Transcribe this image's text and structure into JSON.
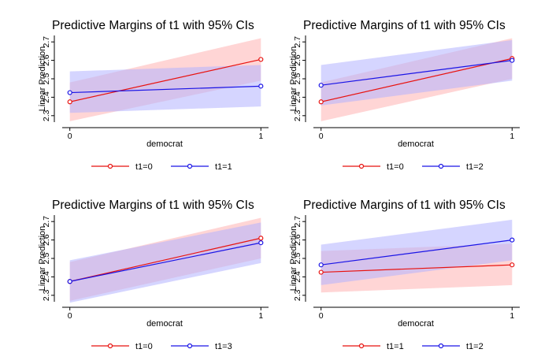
{
  "chart_data": [
    {
      "type": "line",
      "title": "Predictive Margins of t1 with 95% CIs",
      "xlabel": "democrat",
      "ylabel": "Linear Prediction",
      "x": [
        0,
        1
      ],
      "x_ticks": [
        "0",
        "1"
      ],
      "y_ticks": [
        "2.3",
        "2.4",
        "2.5",
        "2.6",
        "2.7"
      ],
      "ylim": [
        2.265,
        2.735
      ],
      "xlim": [
        -0.04,
        1.04
      ],
      "grid": false,
      "legend_position": "bottom",
      "series": [
        {
          "name": "t1=0",
          "color": "#e8120f",
          "band_color": "#ffb3b3",
          "values": [
            2.375,
            2.605
          ],
          "lower": [
            2.27,
            2.49
          ],
          "upper": [
            2.48,
            2.72
          ]
        },
        {
          "name": "t1=1",
          "color": "#1a14e6",
          "band_color": "#b3b3ff",
          "values": [
            2.425,
            2.46
          ],
          "lower": [
            2.315,
            2.35
          ],
          "upper": [
            2.54,
            2.575
          ]
        }
      ]
    },
    {
      "type": "line",
      "title": "Predictive Margins of t1 with 95% CIs",
      "xlabel": "democrat",
      "ylabel": "Linear Prediction",
      "x": [
        0,
        1
      ],
      "x_ticks": [
        "0",
        "1"
      ],
      "y_ticks": [
        "2.3",
        "2.4",
        "2.5",
        "2.6",
        "2.7"
      ],
      "ylim": [
        2.265,
        2.735
      ],
      "xlim": [
        -0.04,
        1.04
      ],
      "grid": false,
      "legend_position": "bottom",
      "series": [
        {
          "name": "t1=0",
          "color": "#e8120f",
          "band_color": "#ffb3b3",
          "values": [
            2.375,
            2.61
          ],
          "lower": [
            2.27,
            2.5
          ],
          "upper": [
            2.48,
            2.72
          ]
        },
        {
          "name": "t1=2",
          "color": "#1a14e6",
          "band_color": "#b3b3ff",
          "values": [
            2.465,
            2.6
          ],
          "lower": [
            2.355,
            2.49
          ],
          "upper": [
            2.575,
            2.71
          ]
        }
      ]
    },
    {
      "type": "line",
      "title": "Predictive Margins of t1 with 95% CIs",
      "xlabel": "democrat",
      "ylabel": "Linear Prediction",
      "x": [
        0,
        1
      ],
      "x_ticks": [
        "0",
        "1"
      ],
      "y_ticks": [
        "2.3",
        "2.4",
        "2.5",
        "2.6",
        "2.7"
      ],
      "ylim": [
        2.265,
        2.735
      ],
      "xlim": [
        -0.04,
        1.04
      ],
      "grid": false,
      "legend_position": "bottom",
      "series": [
        {
          "name": "t1=0",
          "color": "#e8120f",
          "band_color": "#ffb3b3",
          "values": [
            2.375,
            2.61
          ],
          "lower": [
            2.27,
            2.5
          ],
          "upper": [
            2.48,
            2.72
          ]
        },
        {
          "name": "t1=3",
          "color": "#1a14e6",
          "band_color": "#b3b3ff",
          "values": [
            2.375,
            2.585
          ],
          "lower": [
            2.26,
            2.475
          ],
          "upper": [
            2.49,
            2.695
          ]
        }
      ]
    },
    {
      "type": "line",
      "title": "Predictive Margins of t1 with 95% CIs",
      "xlabel": "democrat",
      "ylabel": "Linear Prediction",
      "x": [
        0,
        1
      ],
      "x_ticks": [
        "0",
        "1"
      ],
      "y_ticks": [
        "2.3",
        "2.4",
        "2.5",
        "2.6",
        "2.7"
      ],
      "ylim": [
        2.265,
        2.735
      ],
      "xlim": [
        -0.04,
        1.04
      ],
      "grid": false,
      "legend_position": "bottom",
      "series": [
        {
          "name": "t1=1",
          "color": "#e8120f",
          "band_color": "#ffb3b3",
          "values": [
            2.425,
            2.465
          ],
          "lower": [
            2.315,
            2.355
          ],
          "upper": [
            2.54,
            2.58
          ]
        },
        {
          "name": "t1=2",
          "color": "#1a14e6",
          "band_color": "#b3b3ff",
          "values": [
            2.465,
            2.6
          ],
          "lower": [
            2.355,
            2.49
          ],
          "upper": [
            2.575,
            2.71
          ]
        }
      ]
    }
  ]
}
